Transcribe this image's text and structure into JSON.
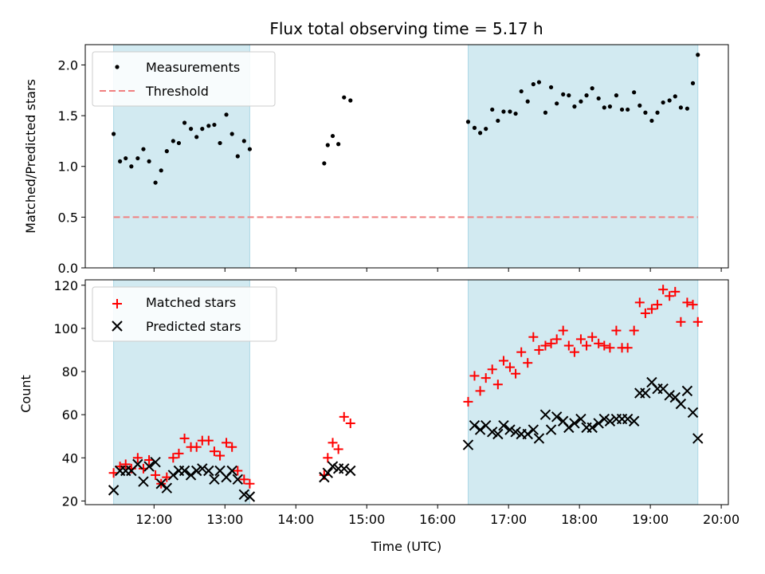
{
  "figure": {
    "title": "Flux total observing time = 5.17 h",
    "xlabel": "Time (UTC)",
    "top_ylabel": "Matched/Predicted stars",
    "bottom_ylabel": "Count"
  },
  "colors": {
    "measurement": "#000000",
    "threshold": "#f08080",
    "matched": "#ff0000",
    "predicted": "#000000",
    "span_fill": "#add8e6"
  },
  "chart_data": [
    {
      "type": "scatter",
      "title": "Flux total observing time = 5.17 h",
      "xlabel": "",
      "ylabel": "Matched/Predicted stars",
      "x_unit": "hours UTC",
      "xlim": [
        11.03,
        20.1
      ],
      "ylim": [
        0.0,
        2.2
      ],
      "yticks": [
        0.0,
        0.5,
        1.0,
        1.5,
        2.0
      ],
      "grid": false,
      "legend_position": "top-left",
      "legend": [
        "Measurements",
        "Threshold"
      ],
      "shaded_spans": [
        [
          11.43,
          13.35
        ],
        [
          16.43,
          19.67
        ]
      ],
      "threshold": {
        "name": "Threshold",
        "y": 0.5,
        "x_range": [
          11.43,
          19.67
        ],
        "style": "dashed"
      },
      "series": [
        {
          "name": "Measurements",
          "marker": "dot",
          "points": [
            [
              11.43,
              1.32
            ],
            [
              11.52,
              1.05
            ],
            [
              11.6,
              1.08
            ],
            [
              11.68,
              1.0
            ],
            [
              11.77,
              1.08
            ],
            [
              11.85,
              1.17
            ],
            [
              11.93,
              1.05
            ],
            [
              12.02,
              0.84
            ],
            [
              12.1,
              0.96
            ],
            [
              12.18,
              1.15
            ],
            [
              12.27,
              1.25
            ],
            [
              12.35,
              1.23
            ],
            [
              12.43,
              1.43
            ],
            [
              12.52,
              1.37
            ],
            [
              12.6,
              1.29
            ],
            [
              12.68,
              1.37
            ],
            [
              12.77,
              1.4
            ],
            [
              12.85,
              1.41
            ],
            [
              12.93,
              1.23
            ],
            [
              13.02,
              1.51
            ],
            [
              13.1,
              1.32
            ],
            [
              13.18,
              1.1
            ],
            [
              13.27,
              1.25
            ],
            [
              13.35,
              1.17
            ],
            [
              14.4,
              1.03
            ],
            [
              14.45,
              1.21
            ],
            [
              14.52,
              1.3
            ],
            [
              14.6,
              1.22
            ],
            [
              14.68,
              1.68
            ],
            [
              14.77,
              1.65
            ],
            [
              16.43,
              1.44
            ],
            [
              16.52,
              1.38
            ],
            [
              16.6,
              1.33
            ],
            [
              16.68,
              1.37
            ],
            [
              16.77,
              1.56
            ],
            [
              16.85,
              1.45
            ],
            [
              16.93,
              1.54
            ],
            [
              17.02,
              1.54
            ],
            [
              17.1,
              1.52
            ],
            [
              17.18,
              1.74
            ],
            [
              17.27,
              1.64
            ],
            [
              17.35,
              1.81
            ],
            [
              17.43,
              1.83
            ],
            [
              17.52,
              1.53
            ],
            [
              17.6,
              1.78
            ],
            [
              17.68,
              1.62
            ],
            [
              17.77,
              1.71
            ],
            [
              17.85,
              1.7
            ],
            [
              17.93,
              1.59
            ],
            [
              18.02,
              1.64
            ],
            [
              18.1,
              1.7
            ],
            [
              18.18,
              1.77
            ],
            [
              18.27,
              1.67
            ],
            [
              18.35,
              1.58
            ],
            [
              18.43,
              1.59
            ],
            [
              18.52,
              1.7
            ],
            [
              18.6,
              1.56
            ],
            [
              18.68,
              1.56
            ],
            [
              18.77,
              1.73
            ],
            [
              18.85,
              1.6
            ],
            [
              18.93,
              1.53
            ],
            [
              19.02,
              1.45
            ],
            [
              19.1,
              1.53
            ],
            [
              19.18,
              1.63
            ],
            [
              19.27,
              1.65
            ],
            [
              19.35,
              1.69
            ],
            [
              19.43,
              1.58
            ],
            [
              19.52,
              1.57
            ],
            [
              19.6,
              1.82
            ],
            [
              19.67,
              2.1
            ]
          ]
        }
      ]
    },
    {
      "type": "scatter",
      "title": "",
      "xlabel": "Time (UTC)",
      "ylabel": "Count",
      "x_unit": "hours UTC",
      "xlim": [
        11.03,
        20.1
      ],
      "ylim": [
        18.3,
        122.5
      ],
      "yticks": [
        20,
        40,
        60,
        80,
        100,
        120
      ],
      "xticks": [
        12,
        13,
        14,
        15,
        16,
        17,
        18,
        19,
        20
      ],
      "xtick_labels": [
        "12:00",
        "13:00",
        "14:00",
        "15:00",
        "16:00",
        "17:00",
        "18:00",
        "19:00",
        "20:00"
      ],
      "grid": false,
      "legend_position": "top-left",
      "legend": [
        "Matched stars",
        "Predicted stars"
      ],
      "shaded_spans": [
        [
          11.43,
          13.35
        ],
        [
          16.43,
          19.67
        ]
      ],
      "series": [
        {
          "name": "Matched stars",
          "marker": "plus",
          "points": [
            [
              11.43,
              33
            ],
            [
              11.52,
              36
            ],
            [
              11.6,
              37
            ],
            [
              11.68,
              35
            ],
            [
              11.77,
              40
            ],
            [
              11.85,
              35
            ],
            [
              11.93,
              39
            ],
            [
              12.02,
              32
            ],
            [
              12.1,
              28
            ],
            [
              12.18,
              31
            ],
            [
              12.27,
              40
            ],
            [
              12.35,
              42
            ],
            [
              12.43,
              49
            ],
            [
              12.52,
              45
            ],
            [
              12.6,
              45
            ],
            [
              12.68,
              48
            ],
            [
              12.77,
              48
            ],
            [
              12.85,
              43
            ],
            [
              12.93,
              41
            ],
            [
              13.02,
              47
            ],
            [
              13.1,
              45
            ],
            [
              13.18,
              34
            ],
            [
              13.27,
              30
            ],
            [
              13.35,
              28
            ],
            [
              14.4,
              32
            ],
            [
              14.45,
              40
            ],
            [
              14.52,
              47
            ],
            [
              14.6,
              44
            ],
            [
              14.68,
              59
            ],
            [
              14.77,
              56
            ],
            [
              16.43,
              66
            ],
            [
              16.52,
              78
            ],
            [
              16.6,
              71
            ],
            [
              16.68,
              77
            ],
            [
              16.77,
              81
            ],
            [
              16.85,
              74
            ],
            [
              16.93,
              85
            ],
            [
              17.02,
              82
            ],
            [
              17.1,
              79
            ],
            [
              17.18,
              89
            ],
            [
              17.27,
              84
            ],
            [
              17.35,
              96
            ],
            [
              17.43,
              90
            ],
            [
              17.52,
              92
            ],
            [
              17.6,
              93
            ],
            [
              17.68,
              95
            ],
            [
              17.77,
              99
            ],
            [
              17.85,
              92
            ],
            [
              17.93,
              89
            ],
            [
              18.02,
              95
            ],
            [
              18.1,
              92
            ],
            [
              18.18,
              96
            ],
            [
              18.27,
              93
            ],
            [
              18.35,
              92
            ],
            [
              18.43,
              91
            ],
            [
              18.52,
              99
            ],
            [
              18.6,
              91
            ],
            [
              18.68,
              91
            ],
            [
              18.77,
              99
            ],
            [
              18.85,
              112
            ],
            [
              18.93,
              107
            ],
            [
              19.02,
              109
            ],
            [
              19.1,
              111
            ],
            [
              19.18,
              118
            ],
            [
              19.27,
              115
            ],
            [
              19.35,
              117
            ],
            [
              19.43,
              103
            ],
            [
              19.52,
              112
            ],
            [
              19.6,
              111
            ],
            [
              19.67,
              103
            ]
          ]
        },
        {
          "name": "Predicted stars",
          "marker": "x",
          "points": [
            [
              11.43,
              25
            ],
            [
              11.52,
              34
            ],
            [
              11.6,
              34
            ],
            [
              11.68,
              34
            ],
            [
              11.77,
              37
            ],
            [
              11.85,
              29
            ],
            [
              11.93,
              36
            ],
            [
              12.02,
              38
            ],
            [
              12.1,
              28
            ],
            [
              12.18,
              26
            ],
            [
              12.27,
              32
            ],
            [
              12.35,
              34
            ],
            [
              12.43,
              34
            ],
            [
              12.52,
              32
            ],
            [
              12.6,
              34
            ],
            [
              12.68,
              35
            ],
            [
              12.77,
              34
            ],
            [
              12.85,
              30
            ],
            [
              12.93,
              34
            ],
            [
              13.02,
              31
            ],
            [
              13.1,
              34
            ],
            [
              13.18,
              30
            ],
            [
              13.27,
              23
            ],
            [
              13.35,
              22
            ],
            [
              14.4,
              31
            ],
            [
              14.45,
              33
            ],
            [
              14.52,
              36
            ],
            [
              14.6,
              35
            ],
            [
              14.68,
              35
            ],
            [
              14.77,
              34
            ],
            [
              16.43,
              46
            ],
            [
              16.52,
              55
            ],
            [
              16.6,
              53
            ],
            [
              16.68,
              55
            ],
            [
              16.77,
              52
            ],
            [
              16.85,
              51
            ],
            [
              16.93,
              55
            ],
            [
              17.02,
              53
            ],
            [
              17.1,
              52
            ],
            [
              17.18,
              51
            ],
            [
              17.27,
              51
            ],
            [
              17.35,
              53
            ],
            [
              17.43,
              49
            ],
            [
              17.52,
              60
            ],
            [
              17.6,
              53
            ],
            [
              17.68,
              59
            ],
            [
              17.77,
              57
            ],
            [
              17.85,
              54
            ],
            [
              17.93,
              56
            ],
            [
              18.02,
              58
            ],
            [
              18.1,
              54
            ],
            [
              18.18,
              54
            ],
            [
              18.27,
              56
            ],
            [
              18.35,
              58
            ],
            [
              18.43,
              57
            ],
            [
              18.52,
              58
            ],
            [
              18.6,
              58
            ],
            [
              18.68,
              58
            ],
            [
              18.77,
              57
            ],
            [
              18.85,
              70
            ],
            [
              18.93,
              70
            ],
            [
              19.02,
              75
            ],
            [
              19.1,
              72
            ],
            [
              19.18,
              72
            ],
            [
              19.27,
              69
            ],
            [
              19.35,
              68
            ],
            [
              19.43,
              65
            ],
            [
              19.52,
              71
            ],
            [
              19.6,
              61
            ],
            [
              19.67,
              49
            ]
          ]
        }
      ]
    }
  ]
}
